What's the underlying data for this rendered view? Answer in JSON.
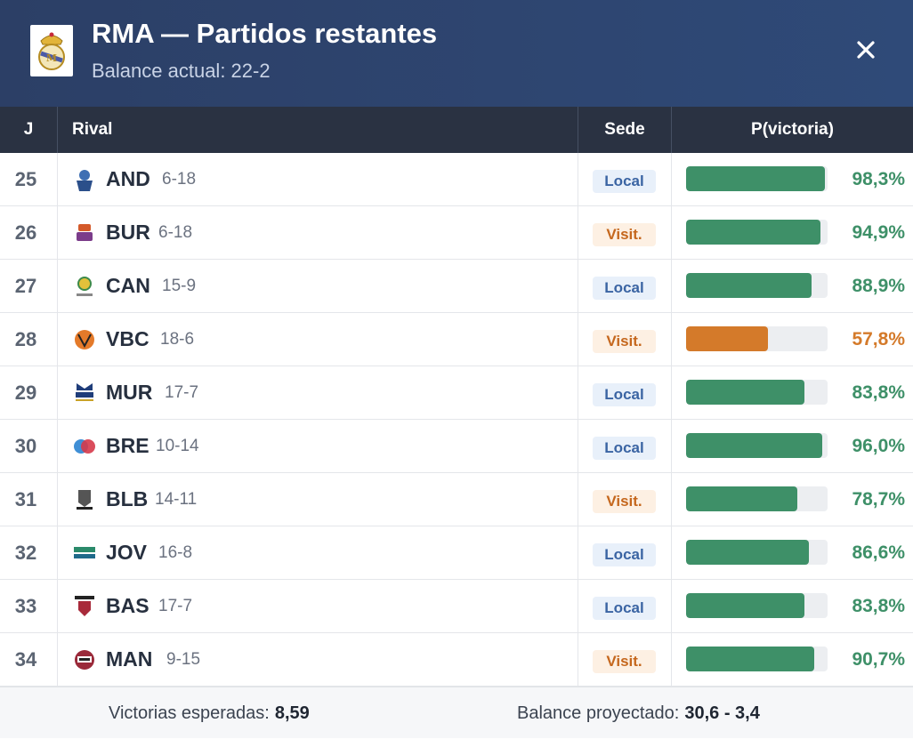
{
  "header": {
    "title": "RMA — Partidos restantes",
    "subtitle": "Balance actual: 22-2",
    "logo_icon": "real-madrid-crest-icon",
    "close_icon": "close-icon"
  },
  "table": {
    "columns": {
      "j": "J",
      "rival": "Rival",
      "sede": "Sede",
      "prob": "P(victoria)"
    },
    "rows": [
      {
        "j": "25",
        "abbr": "AND",
        "record": "6-18",
        "sede": "Local",
        "sede_type": "local",
        "pct": "98,3%",
        "value": 98.3,
        "color": "#3e9068",
        "icon": "andorra-logo-icon"
      },
      {
        "j": "26",
        "abbr": "BUR",
        "record": "6-18",
        "sede": "Visit.",
        "sede_type": "visit",
        "pct": "94,9%",
        "value": 94.9,
        "color": "#3e9068",
        "icon": "burgos-logo-icon"
      },
      {
        "j": "27",
        "abbr": "CAN",
        "record": "15-9",
        "sede": "Local",
        "sede_type": "local",
        "pct": "88,9%",
        "value": 88.9,
        "color": "#3e9068",
        "icon": "canarias-logo-icon"
      },
      {
        "j": "28",
        "abbr": "VBC",
        "record": "18-6",
        "sede": "Visit.",
        "sede_type": "visit",
        "pct": "57,8%",
        "value": 57.8,
        "color": "#d47a2a",
        "icon": "valencia-basket-logo-icon"
      },
      {
        "j": "29",
        "abbr": "MUR",
        "record": "17-7",
        "sede": "Local",
        "sede_type": "local",
        "pct": "83,8%",
        "value": 83.8,
        "color": "#3e9068",
        "icon": "ucam-murcia-logo-icon"
      },
      {
        "j": "30",
        "abbr": "BRE",
        "record": "10-14",
        "sede": "Local",
        "sede_type": "local",
        "pct": "96,0%",
        "value": 96.0,
        "color": "#3e9068",
        "icon": "breogan-logo-icon"
      },
      {
        "j": "31",
        "abbr": "BLB",
        "record": "14-11",
        "sede": "Visit.",
        "sede_type": "visit",
        "pct": "78,7%",
        "value": 78.7,
        "color": "#3e9068",
        "icon": "bilbao-basket-logo-icon"
      },
      {
        "j": "32",
        "abbr": "JOV",
        "record": "16-8",
        "sede": "Local",
        "sede_type": "local",
        "pct": "86,6%",
        "value": 86.6,
        "color": "#3e9068",
        "icon": "joventut-logo-icon"
      },
      {
        "j": "33",
        "abbr": "BAS",
        "record": "17-7",
        "sede": "Local",
        "sede_type": "local",
        "pct": "83,8%",
        "value": 83.8,
        "color": "#3e9068",
        "icon": "baskonia-logo-icon"
      },
      {
        "j": "34",
        "abbr": "MAN",
        "record": "9-15",
        "sede": "Visit.",
        "sede_type": "visit",
        "pct": "90,7%",
        "value": 90.7,
        "color": "#3e9068",
        "icon": "manresa-logo-icon"
      }
    ]
  },
  "footer": {
    "expected_label": "Victorias esperadas:",
    "expected_value": "8,59",
    "projected_label": "Balance proyectado:",
    "projected_value": "30,6 - 3,4"
  }
}
